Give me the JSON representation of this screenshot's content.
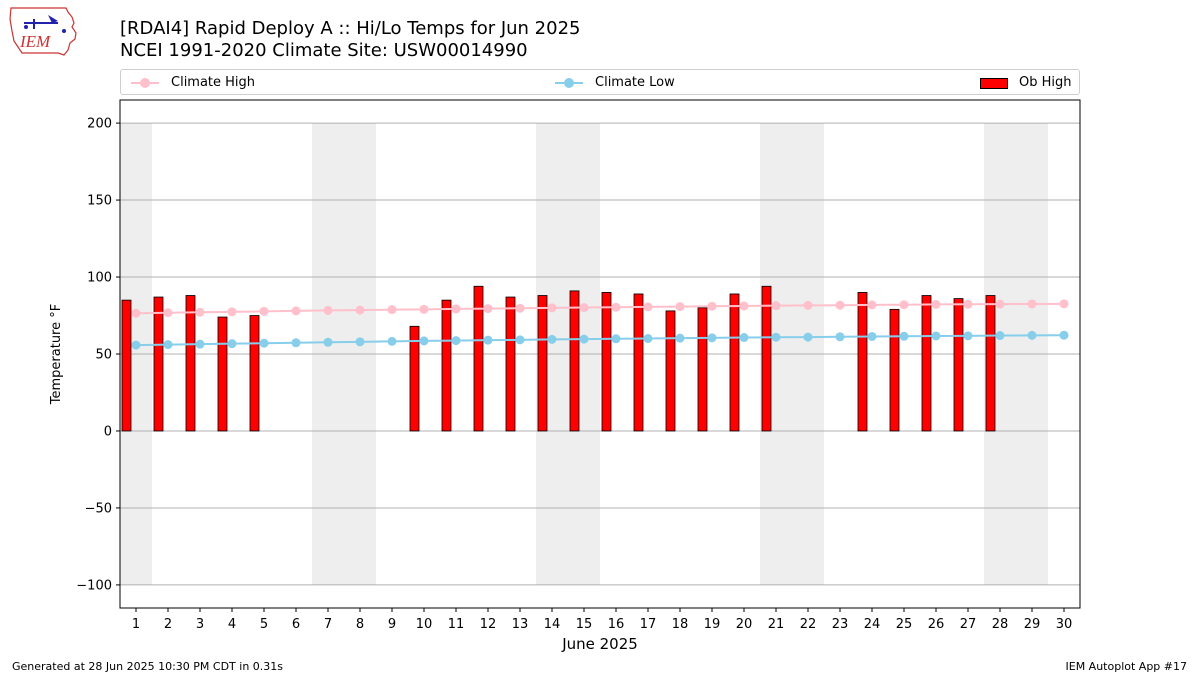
{
  "title": {
    "line1": "[RDAI4] Rapid Deploy A :: Hi/Lo Temps for Jun 2025",
    "line2": "NCEI 1991-2020 Climate Site: USW00014990"
  },
  "logo": {
    "text": "IEM"
  },
  "legend": {
    "climate_high": "Climate High",
    "climate_low": "Climate Low",
    "ob_high": "Ob High"
  },
  "colors": {
    "climate_high": "#ffc0cb",
    "climate_low": "#87ceeb",
    "ob_high": "#ff0000",
    "weekend_band": "#eeeeee",
    "grid": "#b0b0b0"
  },
  "footer": {
    "left": "Generated at 28 Jun 2025 10:30 PM CDT in 0.31s",
    "right": "IEM Autoplot App #17"
  },
  "chart_data": {
    "type": "bar",
    "xlabel": "June 2025",
    "ylabel": "Temperature °F",
    "xlim": [
      0.5,
      30.5
    ],
    "ylim": [
      -115,
      215
    ],
    "yticks": [
      -100,
      -50,
      0,
      50,
      100,
      150,
      200
    ],
    "x": [
      1,
      2,
      3,
      4,
      5,
      6,
      7,
      8,
      9,
      10,
      11,
      12,
      13,
      14,
      15,
      16,
      17,
      18,
      19,
      20,
      21,
      22,
      23,
      24,
      25,
      26,
      27,
      28,
      29,
      30
    ],
    "grid": "horizontal",
    "legend_position": "top",
    "weekend_bands": [
      [
        0.5,
        1.5
      ],
      [
        6.5,
        8.5
      ],
      [
        13.5,
        15.5
      ],
      [
        20.5,
        22.5
      ],
      [
        27.5,
        29.5
      ]
    ],
    "band_range": [
      -100,
      200
    ],
    "series": [
      {
        "name": "Climate High",
        "type": "line",
        "values": [
          76.5,
          76.8,
          77.1,
          77.4,
          77.7,
          78.0,
          78.3,
          78.5,
          78.8,
          79.0,
          79.3,
          79.5,
          79.7,
          80.0,
          80.2,
          80.4,
          80.6,
          80.8,
          81.0,
          81.2,
          81.4,
          81.6,
          81.7,
          81.9,
          82.0,
          82.2,
          82.3,
          82.4,
          82.5,
          82.6
        ]
      },
      {
        "name": "Climate Low",
        "type": "line",
        "values": [
          55.8,
          56.1,
          56.4,
          56.7,
          57.0,
          57.3,
          57.6,
          57.9,
          58.2,
          58.5,
          58.7,
          59.0,
          59.2,
          59.5,
          59.7,
          59.9,
          60.1,
          60.3,
          60.5,
          60.7,
          60.9,
          61.0,
          61.2,
          61.4,
          61.5,
          61.7,
          61.8,
          62.0,
          62.1,
          62.2
        ]
      },
      {
        "name": "Ob High",
        "type": "bar",
        "values": [
          85,
          87,
          88,
          74,
          75,
          null,
          null,
          null,
          null,
          68,
          85,
          94,
          87,
          88,
          91,
          90,
          89,
          78,
          80,
          89,
          94,
          null,
          null,
          90,
          79,
          88,
          86,
          88,
          null,
          null
        ]
      }
    ]
  }
}
